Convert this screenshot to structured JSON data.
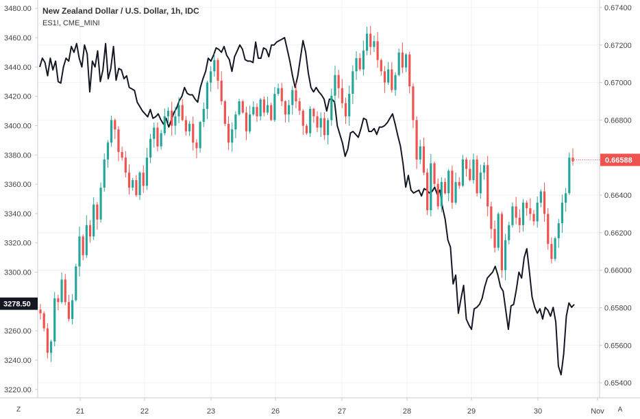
{
  "legend": {
    "title": "New Zealand Dollar / U.S. Dollar, 1h, IDC",
    "overlay": "ES1!, CME_MINI"
  },
  "corner_buttons": {
    "left": "Z",
    "right": "A"
  },
  "colors": {
    "up": "#26a69a",
    "down": "#ef5350",
    "overlay_line": "#131722",
    "grid": "#eef0f3",
    "axis": "#c9cbd1",
    "last_price_badge": "#ef5350",
    "left_badge": "#131722"
  },
  "chart_data": {
    "type": "candlestick",
    "x_ticks": [
      "21",
      "22",
      "23",
      "26",
      "27",
      "28",
      "29",
      "30",
      "Nov"
    ],
    "right_axis": {
      "ticks": [
        "0.67400",
        "0.67200",
        "0.67000",
        "0.66800",
        "0.66600",
        "0.66400",
        "0.66200",
        "0.66000",
        "0.65800",
        "0.65600",
        "0.65400"
      ],
      "range": [
        0.6532,
        0.6744
      ],
      "last_price": 0.66588,
      "last_price_label": "0.66588"
    },
    "left_axis": {
      "ticks": [
        "3480.00",
        "3460.00",
        "3440.00",
        "3420.00",
        "3400.00",
        "3380.00",
        "3360.00",
        "3340.00",
        "3320.00",
        "3300.00",
        "3280.00",
        "3260.00",
        "3240.00",
        "3220.00"
      ],
      "range": [
        3214.3,
        3485.7
      ],
      "last_value": 3278.5,
      "last_value_label": "3278.50"
    },
    "nzdusd_close_path": [
      0.6577,
      0.6569,
      0.6556,
      0.6562,
      0.6585,
      0.6583,
      0.6595,
      0.6583,
      0.6574,
      0.6584,
      0.6602,
      0.6618,
      0.6608,
      0.6624,
      0.6618,
      0.6635,
      0.6627,
      0.6644,
      0.6659,
      0.6668,
      0.668,
      0.6675,
      0.6663,
      0.666,
      0.6652,
      0.6644,
      0.6648,
      0.664,
      0.6652,
      0.6645,
      0.666,
      0.667,
      0.6676,
      0.6666,
      0.6673,
      0.6682,
      0.6685,
      0.6677,
      0.6682,
      0.6688,
      0.668,
      0.6674,
      0.6678,
      0.6668,
      0.6665,
      0.6679,
      0.6686,
      0.67,
      0.6706,
      0.6712,
      0.6701,
      0.669,
      0.6678,
      0.6668,
      0.6675,
      0.6683,
      0.669,
      0.6684,
      0.6674,
      0.6683,
      0.6687,
      0.6682,
      0.6691,
      0.6684,
      0.6688,
      0.668,
      0.6694,
      0.6697,
      0.669,
      0.6683,
      0.6688,
      0.6696,
      0.669,
      0.6685,
      0.6677,
      0.6673,
      0.6686,
      0.6682,
      0.6676,
      0.6681,
      0.6672,
      0.668,
      0.6693,
      0.6704,
      0.6697,
      0.6689,
      0.6682,
      0.6694,
      0.6706,
      0.6713,
      0.6707,
      0.6717,
      0.6726,
      0.6719,
      0.6722,
      0.6712,
      0.6706,
      0.67,
      0.6707,
      0.6696,
      0.6704,
      0.6716,
      0.6708,
      0.6715,
      0.6698,
      0.668,
      0.6659,
      0.6666,
      0.6652,
      0.6632,
      0.6657,
      0.6646,
      0.6634,
      0.6647,
      0.6641,
      0.6653,
      0.6636,
      0.6647,
      0.6645,
      0.6659,
      0.6654,
      0.6648,
      0.6659,
      0.6641,
      0.6652,
      0.6656,
      0.6634,
      0.6622,
      0.6612,
      0.663,
      0.66,
      0.6616,
      0.6624,
      0.6634,
      0.6628,
      0.6624,
      0.6636,
      0.6633,
      0.663,
      0.6626,
      0.6636,
      0.6642,
      0.663,
      0.6614,
      0.6606,
      0.6617,
      0.6625,
      0.6636,
      0.6641,
      0.666,
      0.6658
    ]
  }
}
